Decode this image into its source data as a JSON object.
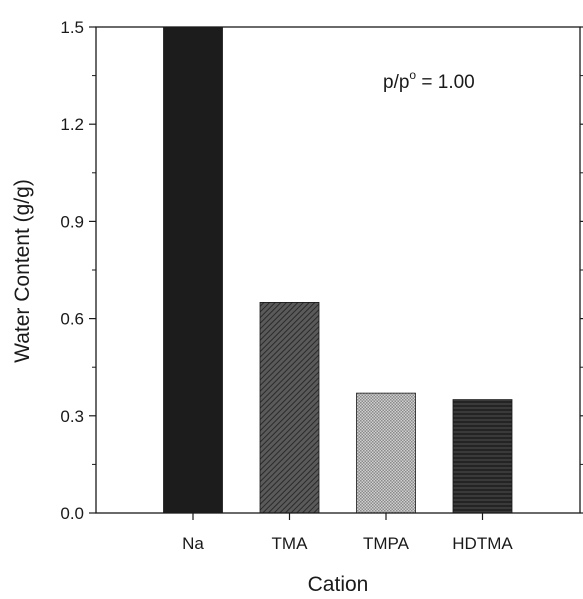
{
  "chart_data": {
    "type": "bar",
    "categories": [
      "Na",
      "TMA",
      "TMPA",
      "HDTMA"
    ],
    "values": [
      1.5,
      0.65,
      0.37,
      0.35
    ],
    "xlabel": "Cation",
    "ylabel": "Water Content (g/g)",
    "ylim": [
      0,
      1.5
    ],
    "yticks": [
      "0.0",
      "0.3",
      "0.6",
      "0.9",
      "1.2",
      "1.5"
    ],
    "ytick_values": [
      0,
      0.3,
      0.6,
      0.9,
      1.2,
      1.5
    ],
    "annotation": {
      "base": "p/p",
      "sup": "o",
      "rest": " = 1.00"
    },
    "bar_colors": [
      "#1c1c1c",
      "#4a4a4a",
      "#b5b5b5",
      "#2e2e2e"
    ],
    "grid": false,
    "legend": "none"
  }
}
